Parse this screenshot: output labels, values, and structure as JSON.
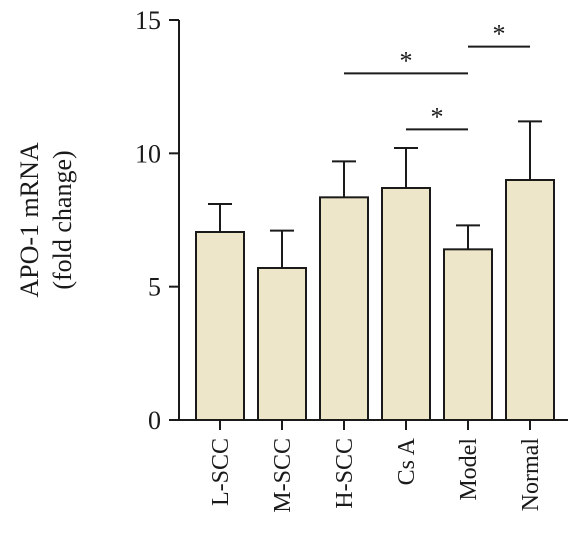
{
  "chart_data": {
    "type": "bar",
    "ylabel_lines": [
      "APO-1 mRNA",
      "(fold change)"
    ],
    "ylim": [
      0,
      15
    ],
    "yticks": [
      0,
      5,
      10,
      15
    ],
    "categories": [
      "L-SCC",
      "M-SCC",
      "H-SCC",
      "Cs A",
      "Model",
      "Normal"
    ],
    "values": [
      7.05,
      5.7,
      8.35,
      8.7,
      6.4,
      9.0
    ],
    "errors": [
      1.05,
      1.4,
      1.35,
      1.5,
      0.9,
      2.2
    ],
    "bar_color": "#ede6c9",
    "significance": [
      {
        "from": "H-SCC",
        "to": "Model",
        "y": 13.0,
        "label": "*"
      },
      {
        "from": "Cs A",
        "to": "Model",
        "y": 10.9,
        "label": "*"
      },
      {
        "from": "Model",
        "to": "Normal",
        "y": 14.0,
        "label": "*"
      }
    ]
  }
}
